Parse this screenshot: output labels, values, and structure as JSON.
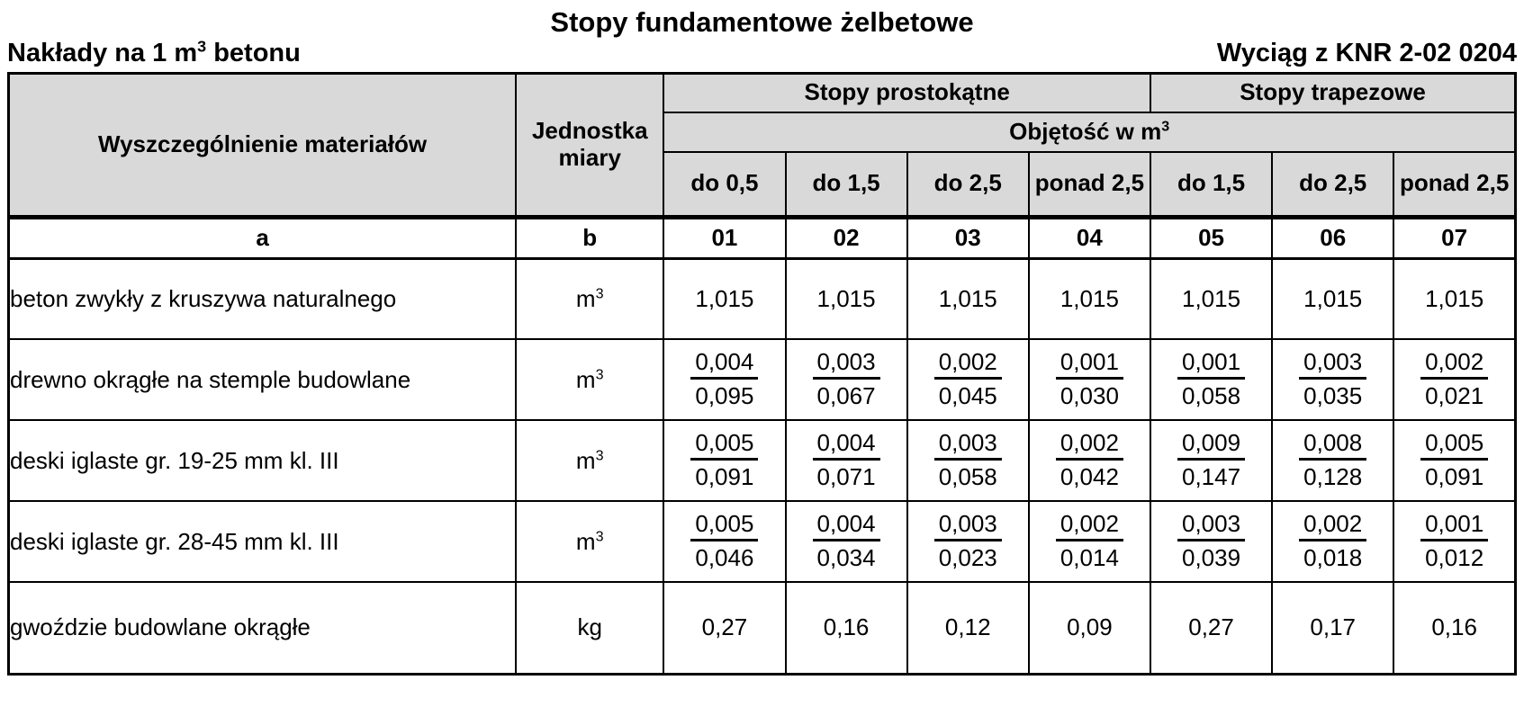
{
  "page": {
    "title": "Stopy fundamentowe żelbetowe",
    "subtitle_left_prefix": "Nakłady na 1 m",
    "subtitle_left_sup": "3",
    "subtitle_left_suffix": " betonu",
    "subtitle_right": "Wyciąg z KNR 2-02 0204"
  },
  "table": {
    "header": {
      "col_materials": "Wyszczególnienie materiałów",
      "col_unit": "Jednostka miary",
      "group_rectangular": "Stopy prostokątne",
      "group_trapezoid": "Stopy trapezowe",
      "volume_prefix": "Objętość w m",
      "volume_sup": "3",
      "subcols": [
        "do 0,5",
        "do 1,5",
        "do 2,5",
        "ponad 2,5",
        "do 1,5",
        "do 2,5",
        "ponad 2,5"
      ],
      "codes": [
        "a",
        "b",
        "01",
        "02",
        "03",
        "04",
        "05",
        "06",
        "07"
      ]
    },
    "rows": [
      {
        "material": "beton zwykły z kruszywa naturalnego",
        "unit": "m",
        "unit_sup": "3",
        "values": [
          {
            "main": "1,015"
          },
          {
            "main": "1,015"
          },
          {
            "main": "1,015"
          },
          {
            "main": "1,015"
          },
          {
            "main": "1,015"
          },
          {
            "main": "1,015"
          },
          {
            "main": "1,015"
          }
        ]
      },
      {
        "material": "drewno okrągłe na stemple budowlane",
        "unit": "m",
        "unit_sup": "3",
        "values": [
          {
            "top": "0,004",
            "bottom": "0,095"
          },
          {
            "top": "0,003",
            "bottom": "0,067"
          },
          {
            "top": "0,002",
            "bottom": "0,045"
          },
          {
            "top": "0,001",
            "bottom": "0,030"
          },
          {
            "top": "0,001",
            "bottom": "0,058"
          },
          {
            "top": "0,003",
            "bottom": "0,035"
          },
          {
            "top": "0,002",
            "bottom": "0,021"
          }
        ]
      },
      {
        "material": "deski iglaste gr. 19-25 mm kl. III",
        "unit": "m",
        "unit_sup": "3",
        "values": [
          {
            "top": "0,005",
            "bottom": "0,091"
          },
          {
            "top": "0,004",
            "bottom": "0,071"
          },
          {
            "top": "0,003",
            "bottom": "0,058"
          },
          {
            "top": "0,002",
            "bottom": "0,042"
          },
          {
            "top": "0,009",
            "bottom": "0,147"
          },
          {
            "top": "0,008",
            "bottom": "0,128"
          },
          {
            "top": "0,005",
            "bottom": "0,091"
          }
        ]
      },
      {
        "material": "deski iglaste gr. 28-45 mm kl. III",
        "unit": "m",
        "unit_sup": "3",
        "values": [
          {
            "top": "0,005",
            "bottom": "0,046"
          },
          {
            "top": "0,004",
            "bottom": "0,034"
          },
          {
            "top": "0,003",
            "bottom": "0,023"
          },
          {
            "top": "0,002",
            "bottom": "0,014"
          },
          {
            "top": "0,003",
            "bottom": "0,039"
          },
          {
            "top": "0,002",
            "bottom": "0,018"
          },
          {
            "top": "0,001",
            "bottom": "0,012"
          }
        ]
      },
      {
        "material": "gwoździe budowlane okrągłe",
        "unit": "kg",
        "unit_sup": "",
        "values": [
          {
            "main": "0,27"
          },
          {
            "main": "0,16"
          },
          {
            "main": "0,12"
          },
          {
            "main": "0,09"
          },
          {
            "main": "0,27"
          },
          {
            "main": "0,17"
          },
          {
            "main": "0,16"
          }
        ]
      }
    ]
  }
}
